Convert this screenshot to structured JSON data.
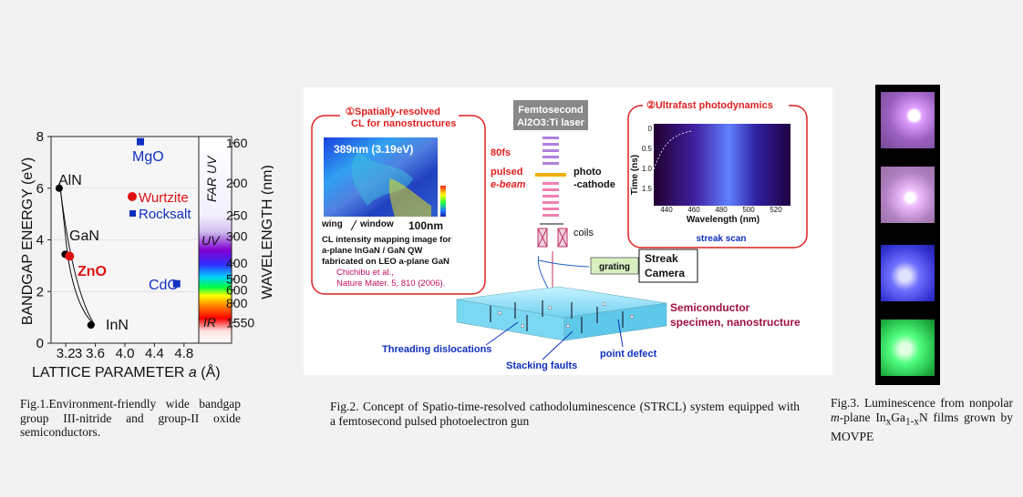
{
  "fig1": {
    "y_ticks": [
      "0",
      "2",
      "4",
      "6",
      "8"
    ],
    "x_ticks": [
      "3.2",
      "3.6",
      "4.0",
      "4.4",
      "4.8"
    ],
    "x_first_tick": "3",
    "y_axis_label": "BANDGAP ENERGY (eV)",
    "x_axis_label": "LATTICE PARAMETER",
    "x_axis_symbol": "a",
    "x_axis_unit": "(Å)",
    "wavelength_label": "WAVELENGTH (nm)",
    "wavelength_ticks": [
      "160",
      "200",
      "250",
      "300",
      "400",
      "500",
      "600",
      "800",
      "1550"
    ],
    "band_labels": {
      "far_uv": "FAR UV",
      "uv": "UV",
      "ir": "IR"
    },
    "materials": {
      "aln": "AlN",
      "gan": "GaN",
      "inn": "InN",
      "zno": "ZnO",
      "mgo": "MgO",
      "cdo": "CdO"
    },
    "legend": {
      "wurtzite": "Wurtzite",
      "rocksalt": "Rocksalt"
    },
    "colors": {
      "wurtzite": "#e01010",
      "rocksalt": "#1030c0",
      "nitride": "#000000"
    }
  },
  "chart_data": {
    "type": "scatter",
    "xlabel": "LATTICE PARAMETER a (Å)",
    "ylabel": "BANDGAP ENERGY (eV)",
    "xlim": [
      3.0,
      5.0
    ],
    "ylim": [
      0,
      8
    ],
    "series": [
      {
        "name": "Wurtzite",
        "points": [
          {
            "label": "AlN",
            "x": 3.11,
            "y": 6.0
          },
          {
            "label": "GaN",
            "x": 3.19,
            "y": 3.44
          },
          {
            "label": "InN",
            "x": 3.54,
            "y": 0.7
          },
          {
            "label": "ZnO",
            "x": 3.25,
            "y": 3.37
          }
        ]
      },
      {
        "name": "Rocksalt",
        "points": [
          {
            "label": "MgO",
            "x": 4.21,
            "y": 7.8
          },
          {
            "label": "CdO",
            "x": 4.7,
            "y": 2.3
          }
        ]
      }
    ]
  },
  "fig2": {
    "panel1_title_line1": "①Spatially-resolved",
    "panel1_title_line2": "CL for nanostructures",
    "cl_peak": "389nm (3.19eV)",
    "wing": "wing",
    "window": "window",
    "scale": "100nm",
    "cl_desc": [
      "CL intensity mapping image for",
      "a-plane InGaN / GaN QW",
      "fabricated on LEO a-plane GaN"
    ],
    "citation_line1": "Chichibu et al.,",
    "citation_line2": "Nature Mater. 5, 810 (2006).",
    "laser_line1": "Femtosecond",
    "laser_line2": "Al2O3:Ti laser",
    "fs": "80fs",
    "pulsed": "pulsed",
    "ebeam": "e-beam",
    "photo": "photo",
    "cathode": "-cathode",
    "coils": "coils",
    "grating": "grating",
    "streak_line1": "Streak",
    "streak_line2": "Camera",
    "panel2_title": "②Ultrafast photodynamics",
    "time_axis": "Time (ns)",
    "time_ticks": [
      "0",
      "0.5",
      "1.0",
      "1.5"
    ],
    "wl_axis": "Wavelength (nm)",
    "wl_ticks": [
      "440",
      "460",
      "480",
      "500",
      "520"
    ],
    "streak_scan": "streak scan",
    "semi_line1": "Semiconductor",
    "semi_line2": "specimen, nanostructure",
    "threading": "Threading dislocations",
    "stacking": "Stacking faults",
    "point_defect": "point defect"
  },
  "captions": {
    "fig1": "Fig.1.Environment-friendly wide bandgap group III-nitride and group-II oxide semiconductors.",
    "fig2": "Fig.2. Concept of Spatio-time-resolved cathodoluminescence (STRCL) system equipped with a femtosecond pulsed photoelectron gun",
    "fig3_prefix": "Fig.3. Luminescence from nonpolar ",
    "fig3_italic": "m",
    "fig3_mid": "-plane In",
    "fig3_sub1": "x",
    "fig3_ga": "Ga",
    "fig3_sub2": "1-x",
    "fig3_n": "N",
    "fig3_suffix": " films grown by MOVPE"
  },
  "fig3_colors": [
    "#d080ff",
    "#f0a0ff",
    "#6060ff",
    "#40ff80"
  ]
}
